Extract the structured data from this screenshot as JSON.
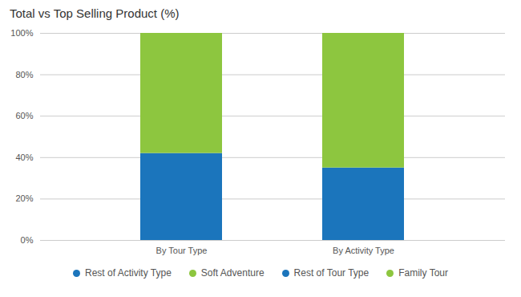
{
  "chart_data": {
    "type": "bar",
    "title": "Total vs Top Selling Product (%)",
    "categories": [
      "By Tour Type",
      "By Activity Type"
    ],
    "series": [
      {
        "name": "Rest of Activity Type",
        "color": "#1b75bc",
        "values": [
          null,
          35
        ]
      },
      {
        "name": "Soft Adventure",
        "color": "#8dc63f",
        "values": [
          null,
          65
        ]
      },
      {
        "name": "Rest of Tour Type",
        "color": "#1b75bc",
        "values": [
          42,
          null
        ]
      },
      {
        "name": "Family Tour",
        "color": "#8dc63f",
        "values": [
          58,
          null
        ]
      }
    ],
    "stacked": true,
    "ylim": [
      0,
      100
    ],
    "yticks": [
      {
        "value": 0,
        "label": "0%"
      },
      {
        "value": 20,
        "label": "20%"
      },
      {
        "value": 40,
        "label": "40%"
      },
      {
        "value": 60,
        "label": "60%"
      },
      {
        "value": 80,
        "label": "80%"
      },
      {
        "value": 100,
        "label": "100%"
      }
    ],
    "grid": true,
    "legend": "bottom"
  }
}
